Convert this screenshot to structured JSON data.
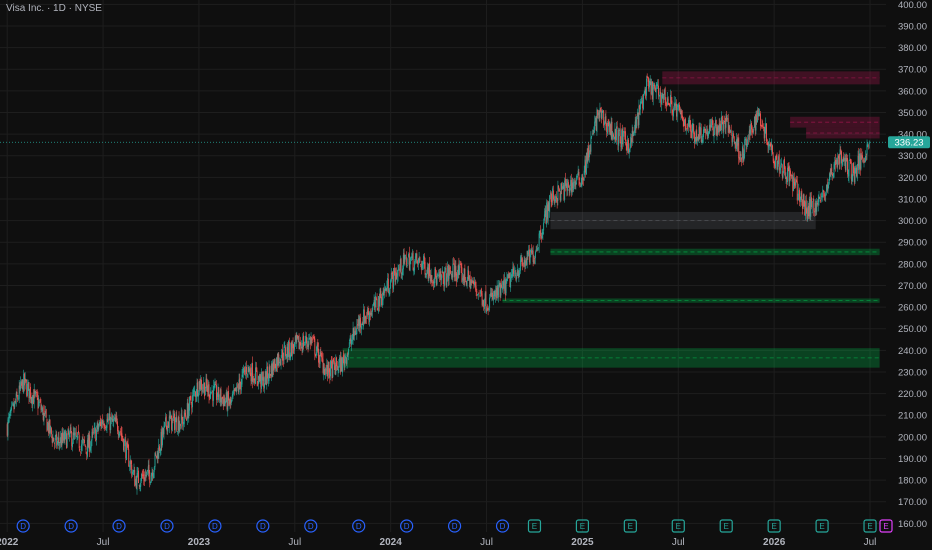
{
  "header": {
    "title": "Visa Inc. · 1D · NYSE"
  },
  "chart_data": {
    "type": "candlestick",
    "title": "Visa Inc. · 1D · NYSE",
    "y_axis": {
      "min": 156,
      "max": 402,
      "side": "right",
      "ticks": [
        "160.00",
        "170.00",
        "180.00",
        "190.00",
        "200.00",
        "210.00",
        "220.00",
        "230.00",
        "240.00",
        "250.00",
        "260.00",
        "270.00",
        "280.00",
        "290.00",
        "300.00",
        "310.00",
        "320.00",
        "330.00",
        "340.00",
        "350.00",
        "360.00",
        "370.00",
        "380.00",
        "390.00",
        "400.00"
      ]
    },
    "x_axis": {
      "ticks": [
        "2022",
        "Jul",
        "2023",
        "Jul",
        "2024",
        "Jul",
        "2025",
        "Jul",
        "2026",
        "Jul"
      ]
    },
    "last_price": {
      "value": 336.23,
      "label": "336.23"
    },
    "price_path": [
      {
        "x": "2022-01",
        "y": 205
      },
      {
        "x": "2022-02",
        "y": 225
      },
      {
        "x": "2022-03",
        "y": 215
      },
      {
        "x": "2022-04",
        "y": 197
      },
      {
        "x": "2022-05",
        "y": 200
      },
      {
        "x": "2022-06",
        "y": 195
      },
      {
        "x": "2022-07",
        "y": 208
      },
      {
        "x": "2022-08",
        "y": 205
      },
      {
        "x": "2022-09",
        "y": 180
      },
      {
        "x": "2022-10",
        "y": 183
      },
      {
        "x": "2022-11",
        "y": 207
      },
      {
        "x": "2022-12",
        "y": 207
      },
      {
        "x": "2023-01",
        "y": 225
      },
      {
        "x": "2023-02",
        "y": 220
      },
      {
        "x": "2023-03",
        "y": 215
      },
      {
        "x": "2023-04",
        "y": 232
      },
      {
        "x": "2023-05",
        "y": 225
      },
      {
        "x": "2023-06",
        "y": 237
      },
      {
        "x": "2023-07",
        "y": 242
      },
      {
        "x": "2023-08",
        "y": 245
      },
      {
        "x": "2023-09",
        "y": 230
      },
      {
        "x": "2023-10",
        "y": 234
      },
      {
        "x": "2023-11",
        "y": 253
      },
      {
        "x": "2023-12",
        "y": 260
      },
      {
        "x": "2024-01",
        "y": 272
      },
      {
        "x": "2024-02",
        "y": 282
      },
      {
        "x": "2024-03",
        "y": 280
      },
      {
        "x": "2024-04",
        "y": 272
      },
      {
        "x": "2024-05",
        "y": 277
      },
      {
        "x": "2024-06",
        "y": 272
      },
      {
        "x": "2024-07",
        "y": 262
      },
      {
        "x": "2024-08",
        "y": 268
      },
      {
        "x": "2024-09",
        "y": 278
      },
      {
        "x": "2024-10",
        "y": 285
      },
      {
        "x": "2024-11",
        "y": 310
      },
      {
        "x": "2024-12",
        "y": 315
      },
      {
        "x": "2025-01",
        "y": 320
      },
      {
        "x": "2025-02",
        "y": 350
      },
      {
        "x": "2025-03",
        "y": 340
      },
      {
        "x": "2025-04",
        "y": 335
      },
      {
        "x": "2025-05",
        "y": 362
      },
      {
        "x": "2025-06",
        "y": 358
      },
      {
        "x": "2025-07",
        "y": 350
      },
      {
        "x": "2025-08",
        "y": 340
      },
      {
        "x": "2025-09",
        "y": 342
      },
      {
        "x": "2025-10",
        "y": 345
      },
      {
        "x": "2025-11",
        "y": 330
      },
      {
        "x": "2025-12",
        "y": 350
      },
      {
        "x": "2026-01",
        "y": 330
      },
      {
        "x": "2026-02",
        "y": 320
      },
      {
        "x": "2026-03",
        "y": 305
      },
      {
        "x": "2026-04",
        "y": 310
      },
      {
        "x": "2026-05",
        "y": 330
      },
      {
        "x": "2026-06",
        "y": 322
      },
      {
        "x": "2026-07",
        "y": 336.23
      }
    ],
    "zones": [
      {
        "kind": "supply",
        "color": "#c2185b",
        "y_low": 363,
        "y_high": 369,
        "x_start": "2025-06",
        "x_end": "2026-07"
      },
      {
        "kind": "supply",
        "color": "#c2185b",
        "y_low": 343,
        "y_high": 348,
        "x_start": "2026-02",
        "x_end": "2026-07"
      },
      {
        "kind": "supply",
        "color": "#c2185b",
        "y_low": 338,
        "y_high": 343,
        "x_start": "2026-03",
        "x_end": "2026-07"
      },
      {
        "kind": "neutral",
        "color": "#5d6068",
        "y_low": 296,
        "y_high": 304,
        "x_start": "2024-11",
        "x_end": "2026-03"
      },
      {
        "kind": "demand",
        "color": "#00c853",
        "y_low": 284,
        "y_high": 287,
        "x_start": "2024-11",
        "x_end": "2026-07"
      },
      {
        "kind": "demand",
        "color": "#00c853",
        "y_low": 262,
        "y_high": 264,
        "x_start": "2024-08",
        "x_end": "2026-07"
      },
      {
        "kind": "demand",
        "color": "#00c853",
        "y_low": 232,
        "y_high": 241,
        "x_start": "2023-10",
        "x_end": "2026-07"
      }
    ],
    "events": [
      {
        "label": "D",
        "x": "2022-02",
        "type": "dividend"
      },
      {
        "label": "D",
        "x": "2022-05",
        "type": "dividend"
      },
      {
        "label": "D",
        "x": "2022-08",
        "type": "dividend"
      },
      {
        "label": "D",
        "x": "2022-11",
        "type": "dividend"
      },
      {
        "label": "D",
        "x": "2023-02",
        "type": "dividend"
      },
      {
        "label": "D",
        "x": "2023-05",
        "type": "dividend"
      },
      {
        "label": "D",
        "x": "2023-08",
        "type": "dividend"
      },
      {
        "label": "D",
        "x": "2023-11",
        "type": "dividend"
      },
      {
        "label": "D",
        "x": "2024-02",
        "type": "dividend"
      },
      {
        "label": "D",
        "x": "2024-05",
        "type": "dividend"
      },
      {
        "label": "D",
        "x": "2024-08",
        "type": "dividend"
      },
      {
        "label": "E",
        "x": "2024-10",
        "type": "earnings"
      },
      {
        "label": "E",
        "x": "2025-01",
        "type": "earnings"
      },
      {
        "label": "E",
        "x": "2025-04",
        "type": "earnings"
      },
      {
        "label": "E",
        "x": "2025-07",
        "type": "earnings"
      },
      {
        "label": "E",
        "x": "2025-10",
        "type": "earnings"
      },
      {
        "label": "E",
        "x": "2026-01",
        "type": "earnings"
      },
      {
        "label": "E",
        "x": "2026-04",
        "type": "earnings"
      },
      {
        "label": "E",
        "x": "2026-07",
        "type": "earnings"
      },
      {
        "label": "E",
        "x": "2026-08",
        "type": "earnings-upcoming"
      }
    ]
  },
  "colors": {
    "background": "#0f0f0f",
    "up": "#26a69a",
    "down": "#ef5350",
    "grid": "#1e1e1e",
    "text": "#b2b5be",
    "price_label": "#26a69a"
  }
}
